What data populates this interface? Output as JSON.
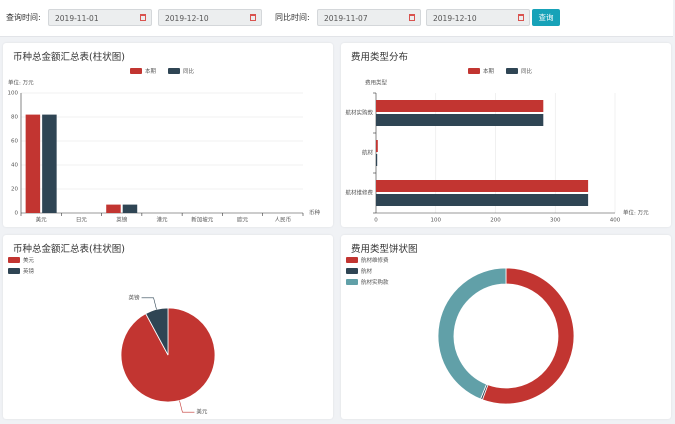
{
  "filters": {
    "query_label": "查询时间:",
    "query_start": "2019-11-01",
    "query_end": "2019-12-10",
    "compare_label": "同比时间:",
    "compare_start": "2019-11-07",
    "compare_end": "2019-12-10",
    "button": "查询"
  },
  "chart_data": [
    {
      "type": "bar",
      "title": "币种总金额汇总表(柱状图)",
      "y_label": "单位: 万元",
      "x_label": "币种",
      "categories": [
        "美元",
        "日元",
        "英镑",
        "港元",
        "新加坡元",
        "欧元",
        "人民币"
      ],
      "series": [
        {
          "name": "本期",
          "color": "#c23531",
          "values": [
            82,
            0,
            7,
            0,
            0,
            0,
            0
          ]
        },
        {
          "name": "同比",
          "color": "#2f4554",
          "values": [
            82,
            0,
            7,
            0,
            0,
            0,
            0
          ]
        }
      ],
      "ylim": [
        0,
        100
      ],
      "yticks": [
        0,
        20,
        40,
        60,
        80,
        100
      ],
      "grid": true
    },
    {
      "type": "bar",
      "orientation": "horizontal",
      "title": "费用类型分布",
      "y_label": "费用类型",
      "x_label": "单位: 万元",
      "categories": [
        "航材维修费",
        "航材",
        "航材实购款"
      ],
      "series": [
        {
          "name": "本期",
          "color": "#c23531",
          "values": [
            355,
            3,
            280
          ]
        },
        {
          "name": "同比",
          "color": "#2f4554",
          "values": [
            355,
            2,
            280
          ]
        }
      ],
      "xlim": [
        0,
        400
      ],
      "xticks": [
        0,
        100,
        200,
        300,
        400
      ],
      "grid": true
    },
    {
      "type": "pie",
      "title": "币种总金额汇总表(柱状图)",
      "categories": [
        "美元",
        "英镑"
      ],
      "values": [
        82,
        7
      ],
      "colors": [
        "#c23531",
        "#2f4554"
      ],
      "slice_labels": true
    },
    {
      "type": "pie",
      "donut": true,
      "title": "费用类型饼状图",
      "categories": [
        "航材维修费",
        "航材",
        "航材实购款"
      ],
      "values": [
        355,
        3,
        280
      ],
      "colors": [
        "#c23531",
        "#2f4554",
        "#61a0a8"
      ]
    }
  ]
}
